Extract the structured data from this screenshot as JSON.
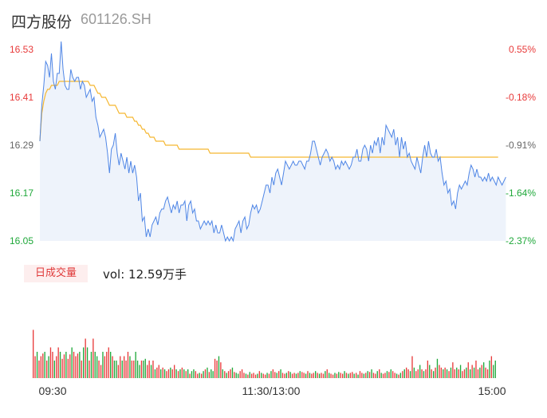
{
  "header": {
    "name": "四方股份",
    "code": "601126.SH"
  },
  "volume_panel": {
    "badge": "日成交量",
    "summary": "vol: 12.59万手"
  },
  "colors": {
    "price_line": "#4f86e6",
    "avg_line": "#f5b731",
    "up": "#e83a3a",
    "down": "#1fa83a",
    "neutral": "#666666",
    "area": "#eef3fb"
  },
  "chart_data": [
    {
      "type": "line",
      "title": "",
      "ylim": [
        16.05,
        16.53
      ],
      "y_ticks": [
        "16.53",
        "16.41",
        "16.29",
        "16.17",
        "16.05"
      ],
      "y_tick_colors": [
        "#e83a3a",
        "#e83a3a",
        "#666666",
        "#1fa83a",
        "#1fa83a"
      ],
      "pct_ticks": [
        "0.55%",
        "-0.18%",
        "-0.91%",
        "-1.64%",
        "-2.37%"
      ],
      "pct_tick_colors": [
        "#e83a3a",
        "#e83a3a",
        "#666666",
        "#1fa83a",
        "#1fa83a"
      ],
      "x_ticks": [
        "09:30",
        "11:30/13:00",
        "15:00"
      ],
      "minutes_total": 240,
      "series": [
        {
          "name": "price",
          "values": [
            16.3,
            16.39,
            16.44,
            16.5,
            16.49,
            16.46,
            16.52,
            16.45,
            16.43,
            16.47,
            16.47,
            16.55,
            16.48,
            16.44,
            16.43,
            16.43,
            16.48,
            16.46,
            16.45,
            16.46,
            16.46,
            16.43,
            16.45,
            16.44,
            16.41,
            16.42,
            16.43,
            16.4,
            16.41,
            16.36,
            16.34,
            16.31,
            16.32,
            16.33,
            16.31,
            16.27,
            16.22,
            16.28,
            16.29,
            16.32,
            16.27,
            16.24,
            16.27,
            16.25,
            16.23,
            16.26,
            16.22,
            16.25,
            16.22,
            16.24,
            16.21,
            16.15,
            16.17,
            16.1,
            16.11,
            16.06,
            16.08,
            16.06,
            16.09,
            16.1,
            16.11,
            16.09,
            16.12,
            16.13,
            16.13,
            16.15,
            16.16,
            16.14,
            16.12,
            16.14,
            16.13,
            16.15,
            16.12,
            16.14,
            16.14,
            16.15,
            16.1,
            16.14,
            16.15,
            16.12,
            16.13,
            16.1,
            16.1,
            16.08,
            16.09,
            16.1,
            16.09,
            16.1,
            16.09,
            16.1,
            16.07,
            16.09,
            16.07,
            16.07,
            16.09,
            16.07,
            16.05,
            16.06,
            16.05,
            16.06,
            16.05,
            16.08,
            16.09,
            16.1,
            16.07,
            16.1,
            16.11,
            16.08,
            16.09,
            16.12,
            16.14,
            16.13,
            16.14,
            16.12,
            16.13,
            16.15,
            16.17,
            16.19,
            16.19,
            16.17,
            16.21,
            16.19,
            16.22,
            16.23,
            16.21,
            16.19,
            16.22,
            16.25,
            16.24,
            16.23,
            16.24,
            16.25,
            16.24,
            16.24,
            16.25,
            16.25,
            16.24,
            16.23,
            16.25,
            16.25,
            16.27,
            16.3,
            16.3,
            16.28,
            16.26,
            16.24,
            16.26,
            16.27,
            16.28,
            16.27,
            16.25,
            16.26,
            16.25,
            16.23,
            16.24,
            16.23,
            16.25,
            16.24,
            16.25,
            16.24,
            16.23,
            16.24,
            16.26,
            16.26,
            16.28,
            16.25,
            16.25,
            16.28,
            16.29,
            16.28,
            16.25,
            16.29,
            16.27,
            16.3,
            16.29,
            16.31,
            16.27,
            16.31,
            16.29,
            16.34,
            16.33,
            16.32,
            16.31,
            16.33,
            16.29,
            16.31,
            16.26,
            16.31,
            16.28,
            16.3,
            16.26,
            16.27,
            16.25,
            16.24,
            16.23,
            16.26,
            16.24,
            16.22,
            16.26,
            16.29,
            16.26,
            16.3,
            16.27,
            16.26,
            16.26,
            16.28,
            16.25,
            16.26,
            16.22,
            16.19,
            16.2,
            16.17,
            16.18,
            16.14,
            16.15,
            16.13,
            16.17,
            16.19,
            16.18,
            16.19,
            16.2,
            16.19,
            16.22,
            16.24,
            16.23,
            16.21,
            16.23,
            16.21,
            16.21,
            16.2,
            16.21,
            16.2,
            16.22,
            16.2,
            16.21,
            16.2,
            16.19,
            16.21,
            16.2,
            16.19,
            16.2,
            16.21
          ]
        },
        {
          "name": "average",
          "values": [
            16.3,
            16.37,
            16.4,
            16.42,
            16.43,
            16.43,
            16.44,
            16.44,
            16.44,
            16.44,
            16.45,
            16.45,
            16.45,
            16.45,
            16.45,
            16.45,
            16.45,
            16.45,
            16.45,
            16.45,
            16.45,
            16.45,
            16.45,
            16.45,
            16.45,
            16.45,
            16.44,
            16.44,
            16.44,
            16.43,
            16.42,
            16.42,
            16.41,
            16.41,
            16.41,
            16.4,
            16.39,
            16.39,
            16.39,
            16.39,
            16.38,
            16.37,
            16.37,
            16.37,
            16.37,
            16.36,
            16.36,
            16.36,
            16.36,
            16.35,
            16.35,
            16.34,
            16.34,
            16.33,
            16.33,
            16.32,
            16.32,
            16.31,
            16.31,
            16.31,
            16.3,
            16.3,
            16.3,
            16.3,
            16.3,
            16.29,
            16.29,
            16.29,
            16.29,
            16.29,
            16.29,
            16.29,
            16.28,
            16.28,
            16.28,
            16.28,
            16.28,
            16.28,
            16.28,
            16.28,
            16.28,
            16.28,
            16.28,
            16.28,
            16.28,
            16.28,
            16.28,
            16.28,
            16.27,
            16.27,
            16.27,
            16.27,
            16.27,
            16.27,
            16.27,
            16.27,
            16.27,
            16.27,
            16.27,
            16.27,
            16.27,
            16.27,
            16.27,
            16.27,
            16.27,
            16.27,
            16.27,
            16.27,
            16.27,
            16.26,
            16.26,
            16.26,
            16.26,
            16.26,
            16.26,
            16.26,
            16.26,
            16.26,
            16.26,
            16.26,
            16.26,
            16.26,
            16.26,
            16.26,
            16.26,
            16.26,
            16.26,
            16.26,
            16.26,
            16.26,
            16.26,
            16.26,
            16.26,
            16.26,
            16.26,
            16.26,
            16.26,
            16.26,
            16.26,
            16.26,
            16.26,
            16.26,
            16.26,
            16.26,
            16.26,
            16.26,
            16.26,
            16.26,
            16.26,
            16.26,
            16.26,
            16.26,
            16.26,
            16.26,
            16.26,
            16.26,
            16.26,
            16.26,
            16.26,
            16.26,
            16.26,
            16.26,
            16.26,
            16.26,
            16.26,
            16.26,
            16.26,
            16.26,
            16.26,
            16.26,
            16.26,
            16.26,
            16.26,
            16.26,
            16.26,
            16.26,
            16.26,
            16.26,
            16.26,
            16.26,
            16.26,
            16.26,
            16.26,
            16.26,
            16.26,
            16.26,
            16.26,
            16.26,
            16.26,
            16.26,
            16.26,
            16.26,
            16.26,
            16.26,
            16.26,
            16.26,
            16.26,
            16.26,
            16.26,
            16.26,
            16.26,
            16.26,
            16.26,
            16.26,
            16.26,
            16.26,
            16.26,
            16.26,
            16.26,
            16.26,
            16.26,
            16.26,
            16.26,
            16.26,
            16.26,
            16.26,
            16.26,
            16.26,
            16.26,
            16.26,
            16.26,
            16.26,
            16.26,
            16.26,
            16.26,
            16.26,
            16.26,
            16.26,
            16.26,
            16.26,
            16.26,
            16.26,
            16.26,
            16.26,
            16.26,
            16.26,
            16.26,
            16.26
          ]
        }
      ]
    },
    {
      "type": "bar",
      "title": "",
      "ylim": [
        0,
        100
      ],
      "volumes": [
        55,
        25,
        30,
        20,
        25,
        28,
        30,
        20,
        25,
        35,
        30,
        20,
        25,
        35,
        30,
        22,
        27,
        30,
        22,
        27,
        35,
        30,
        25,
        28,
        30,
        20,
        35,
        45,
        35,
        20,
        30,
        45,
        30,
        25,
        20,
        15,
        30,
        25,
        30,
        35,
        30,
        25,
        20,
        20,
        15,
        25,
        20,
        25,
        20,
        30,
        25,
        20,
        20,
        30,
        20,
        15,
        20,
        20,
        22,
        15,
        20,
        15,
        20,
        10,
        12,
        15,
        10,
        12,
        10,
        8,
        10,
        12,
        10,
        15,
        10,
        8,
        10,
        12,
        10,
        8,
        10,
        5,
        8,
        10,
        8,
        5,
        6,
        5,
        8,
        10,
        12,
        7,
        10,
        8,
        22,
        20,
        25,
        18,
        10,
        8,
        6,
        8,
        10,
        12,
        7,
        6,
        5,
        8,
        10,
        6,
        5,
        4,
        7,
        5,
        6,
        4,
        5,
        8,
        6,
        5,
        4,
        6,
        5,
        8,
        10,
        7,
        6,
        8,
        10,
        6,
        5,
        6,
        8,
        7,
        5,
        6,
        5,
        6,
        8,
        7,
        6,
        5,
        8,
        6,
        5,
        6,
        8,
        6,
        5,
        6,
        5,
        8,
        10,
        6,
        5,
        4,
        6,
        5,
        7,
        6,
        5,
        8,
        6,
        5,
        6,
        7,
        5,
        6,
        4,
        8,
        6,
        5,
        6,
        8,
        7,
        10,
        6,
        5,
        8,
        10,
        6,
        5,
        6,
        8,
        7,
        10,
        8,
        6,
        5,
        4,
        6,
        8,
        10,
        12,
        10,
        8,
        25,
        12,
        8,
        10,
        15,
        10,
        8,
        10,
        20,
        15,
        10,
        8,
        12,
        22,
        15,
        12,
        10,
        12,
        10,
        8,
        12,
        18,
        10,
        12,
        10,
        15,
        8,
        10,
        12,
        18,
        10,
        15,
        12,
        20,
        10,
        12,
        15,
        18,
        12,
        10,
        20,
        25,
        15,
        20
      ],
      "dirs": [
        1,
        1,
        0,
        1,
        1,
        1,
        0,
        1,
        0,
        1,
        1,
        0,
        1,
        1,
        0,
        1,
        1,
        0,
        1,
        1,
        0,
        1,
        1,
        1,
        0,
        1,
        0,
        1,
        0,
        1,
        0,
        1,
        0,
        0,
        1,
        1,
        0,
        1,
        1,
        1,
        0,
        1,
        0,
        0,
        1,
        1,
        0,
        1,
        1,
        1,
        0,
        1,
        1,
        0,
        0,
        0,
        1,
        0,
        0,
        1,
        1,
        0,
        1,
        0,
        1,
        1,
        0,
        1,
        0,
        1,
        1,
        0,
        1,
        1,
        0,
        1,
        0,
        1,
        0,
        1,
        0,
        1,
        0,
        0,
        1,
        1,
        0,
        1,
        0,
        1,
        0,
        1,
        0,
        0,
        1,
        1,
        0,
        1,
        0,
        1,
        0,
        1,
        1,
        0,
        1,
        0,
        0,
        1,
        1,
        1,
        0,
        1,
        0,
        1,
        1,
        1,
        0,
        1,
        0,
        1,
        1,
        0,
        1,
        0,
        1,
        1,
        0,
        1,
        0,
        1,
        1,
        0,
        1,
        0,
        1,
        1,
        0,
        1,
        0,
        1,
        1,
        0,
        1,
        0,
        1,
        1,
        0,
        1,
        0,
        1,
        1,
        0,
        1,
        0,
        1,
        1,
        0,
        1,
        0,
        1,
        1,
        0,
        1,
        0,
        1,
        1,
        0,
        1,
        0,
        1,
        1,
        0,
        1,
        0,
        1,
        0,
        1,
        1,
        0,
        1,
        0,
        1,
        1,
        0,
        1,
        0,
        1,
        1,
        0,
        1,
        0,
        1,
        0,
        1,
        1,
        0,
        1,
        0,
        1,
        1,
        0,
        1,
        0,
        1,
        1,
        0,
        1,
        0,
        1,
        0,
        1,
        1,
        0,
        1,
        0,
        1,
        0,
        1,
        1,
        0,
        1,
        0,
        1,
        1,
        0,
        1,
        0,
        1,
        0,
        1,
        1,
        0,
        1,
        0,
        1,
        1,
        0,
        1,
        0,
        0,
        1,
        1,
        0,
        1,
        0,
        1,
        0,
        0,
        1,
        0
      ]
    }
  ]
}
